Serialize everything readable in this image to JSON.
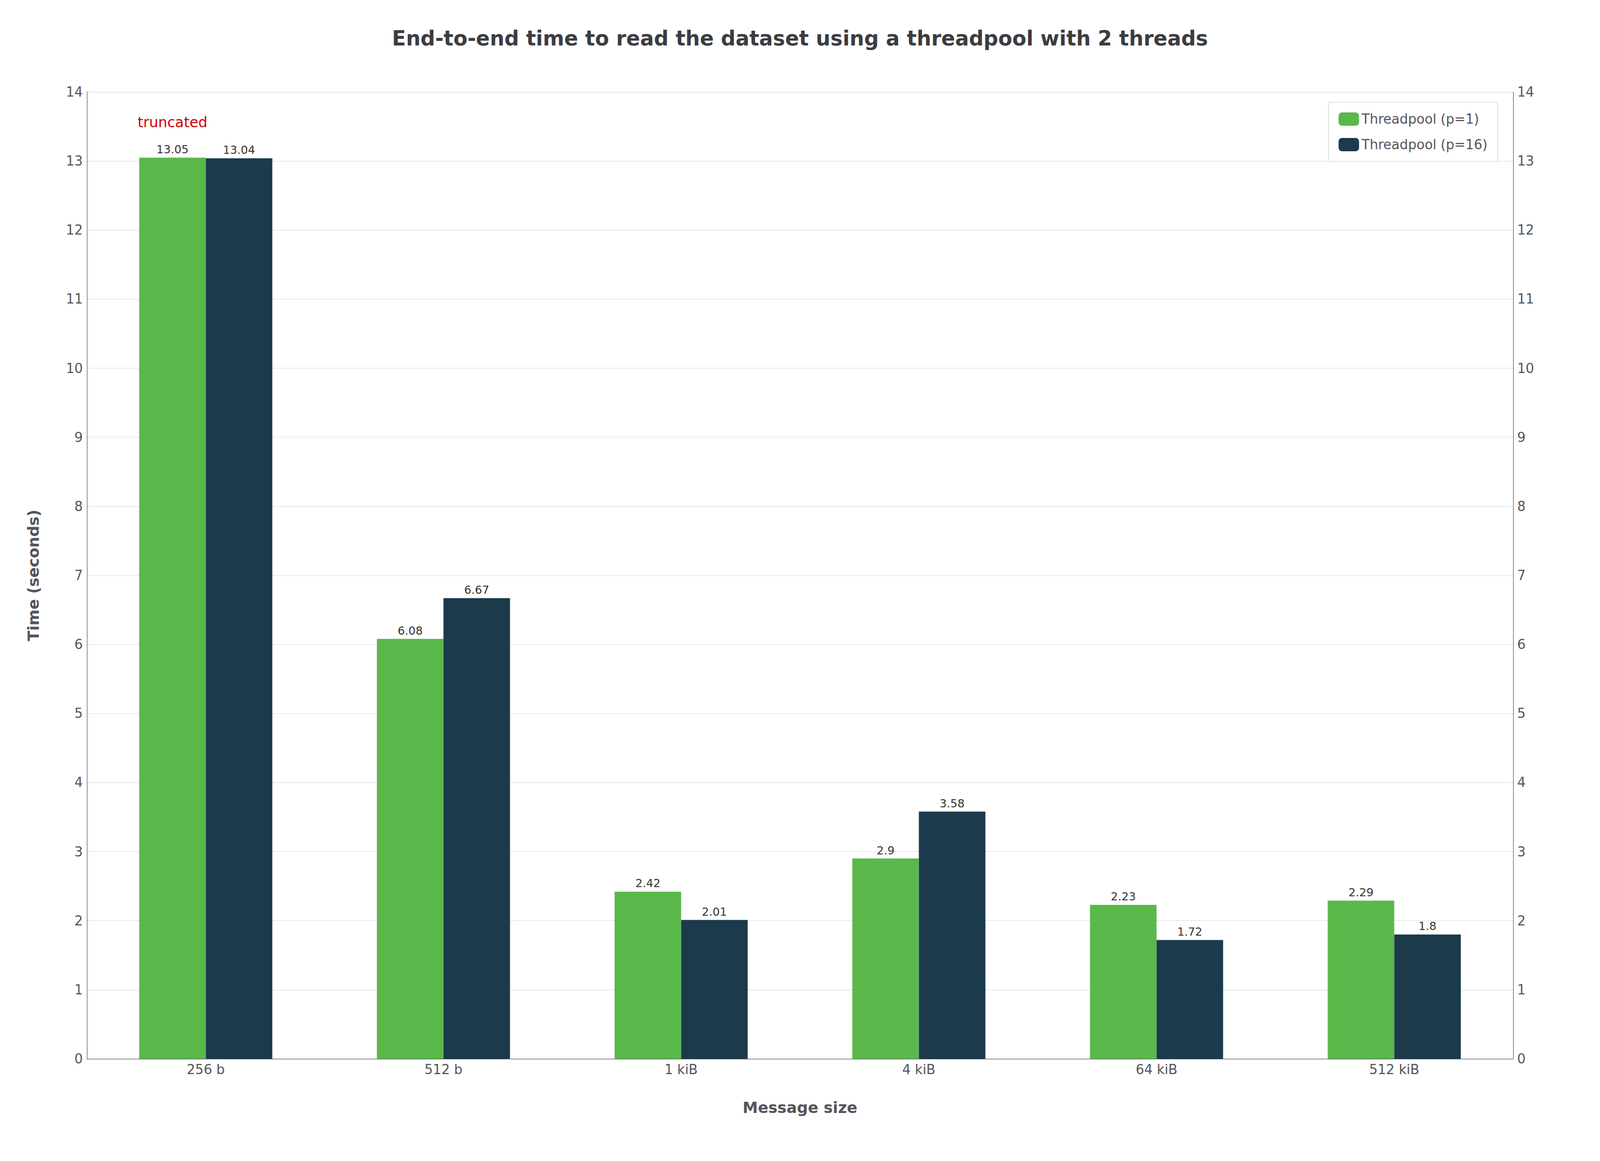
{
  "chart_data": {
    "type": "bar",
    "title": "End-to-end time to read the dataset using a threadpool with 2 threads",
    "categories": [
      "256 b",
      "512 b",
      "1 kiB",
      "4 kiB",
      "64 kiB",
      "512 kiB"
    ],
    "series": [
      {
        "name": "Threadpool (p=1)",
        "color": "#5ab84b",
        "values": [
          13.05,
          6.08,
          2.42,
          2.9,
          2.23,
          2.29
        ]
      },
      {
        "name": "Threadpool (p=16)",
        "color": "#1b3a4b",
        "values": [
          13.04,
          6.67,
          2.01,
          3.58,
          1.72,
          1.8
        ]
      }
    ],
    "xlabel": "Message size",
    "ylabel": "Time (seconds)",
    "ylim": [
      0,
      14
    ],
    "yticks": [
      0,
      1,
      2,
      3,
      4,
      5,
      6,
      7,
      8,
      9,
      10,
      11,
      12,
      13,
      14
    ],
    "y2lim": [
      0,
      14
    ],
    "y2ticks": [
      0,
      1,
      2,
      3,
      4,
      5,
      6,
      7,
      8,
      9,
      10,
      11,
      12,
      13,
      14
    ],
    "grid": true,
    "legend": "upper right",
    "data_labels": true,
    "annotations": [
      {
        "text": "truncated",
        "x": "256 b",
        "color": "#cc0000"
      }
    ]
  }
}
